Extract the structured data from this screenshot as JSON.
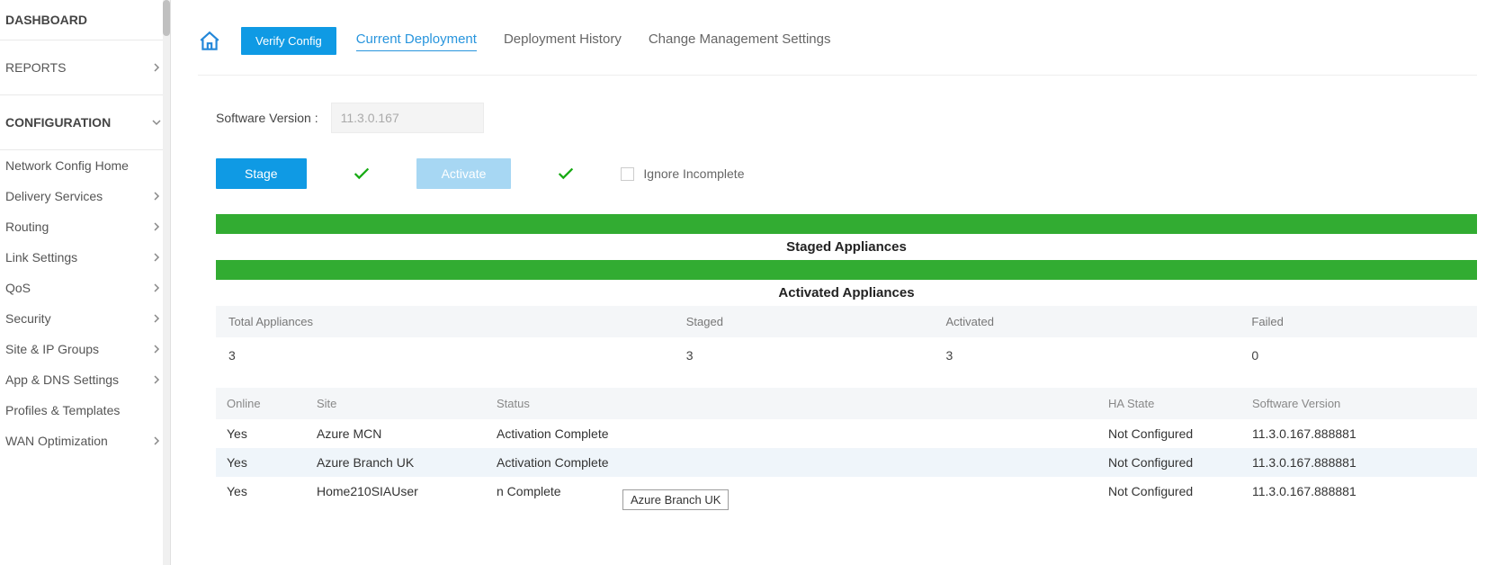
{
  "sidebar": {
    "dashboard": "DASHBOARD",
    "reports": "REPORTS",
    "configuration": "CONFIGURATION",
    "items": [
      {
        "label": "Network Config Home",
        "expandable": false
      },
      {
        "label": "Delivery Services",
        "expandable": true
      },
      {
        "label": "Routing",
        "expandable": true
      },
      {
        "label": "Link Settings",
        "expandable": true
      },
      {
        "label": "QoS",
        "expandable": true
      },
      {
        "label": "Security",
        "expandable": true
      },
      {
        "label": "Site & IP Groups",
        "expandable": true
      },
      {
        "label": "App & DNS Settings",
        "expandable": true
      },
      {
        "label": "Profiles & Templates",
        "expandable": false
      },
      {
        "label": "WAN Optimization",
        "expandable": true
      }
    ]
  },
  "topbar": {
    "verify": "Verify Config",
    "tabs": [
      {
        "label": "Current Deployment",
        "active": true
      },
      {
        "label": "Deployment History",
        "active": false
      },
      {
        "label": "Change Management Settings",
        "active": false
      }
    ]
  },
  "version": {
    "label": "Software Version :",
    "value": "11.3.0.167"
  },
  "actions": {
    "stage": "Stage",
    "activate": "Activate",
    "ignore": "Ignore Incomplete"
  },
  "sections": {
    "staged": "Staged Appliances",
    "activated": "Activated Appliances"
  },
  "summary": {
    "headers": [
      "Total Appliances",
      "Staged",
      "Activated",
      "Failed"
    ],
    "values": [
      "3",
      "3",
      "3",
      "0"
    ]
  },
  "details": {
    "headers": [
      "Online",
      "Site",
      "Status",
      "HA State",
      "Software Version"
    ],
    "rows": [
      {
        "online": "Yes",
        "site": "Azure MCN",
        "status": "Activation Complete",
        "ha": "Not Configured",
        "sv": "11.3.0.167.888881"
      },
      {
        "online": "Yes",
        "site": "Azure Branch UK",
        "status": "Activation Complete",
        "ha": "Not Configured",
        "sv": "11.3.0.167.888881"
      },
      {
        "online": "Yes",
        "site": "Home210SIAUser",
        "status": "n Complete",
        "ha": "Not Configured",
        "sv": "11.3.0.167.888881"
      }
    ]
  },
  "tooltip": "Azure Branch UK",
  "colors": {
    "primary": "#0f9ae4",
    "activateBtn": "#a7d7f3",
    "green": "#32ac32",
    "check": "#17aa13"
  }
}
